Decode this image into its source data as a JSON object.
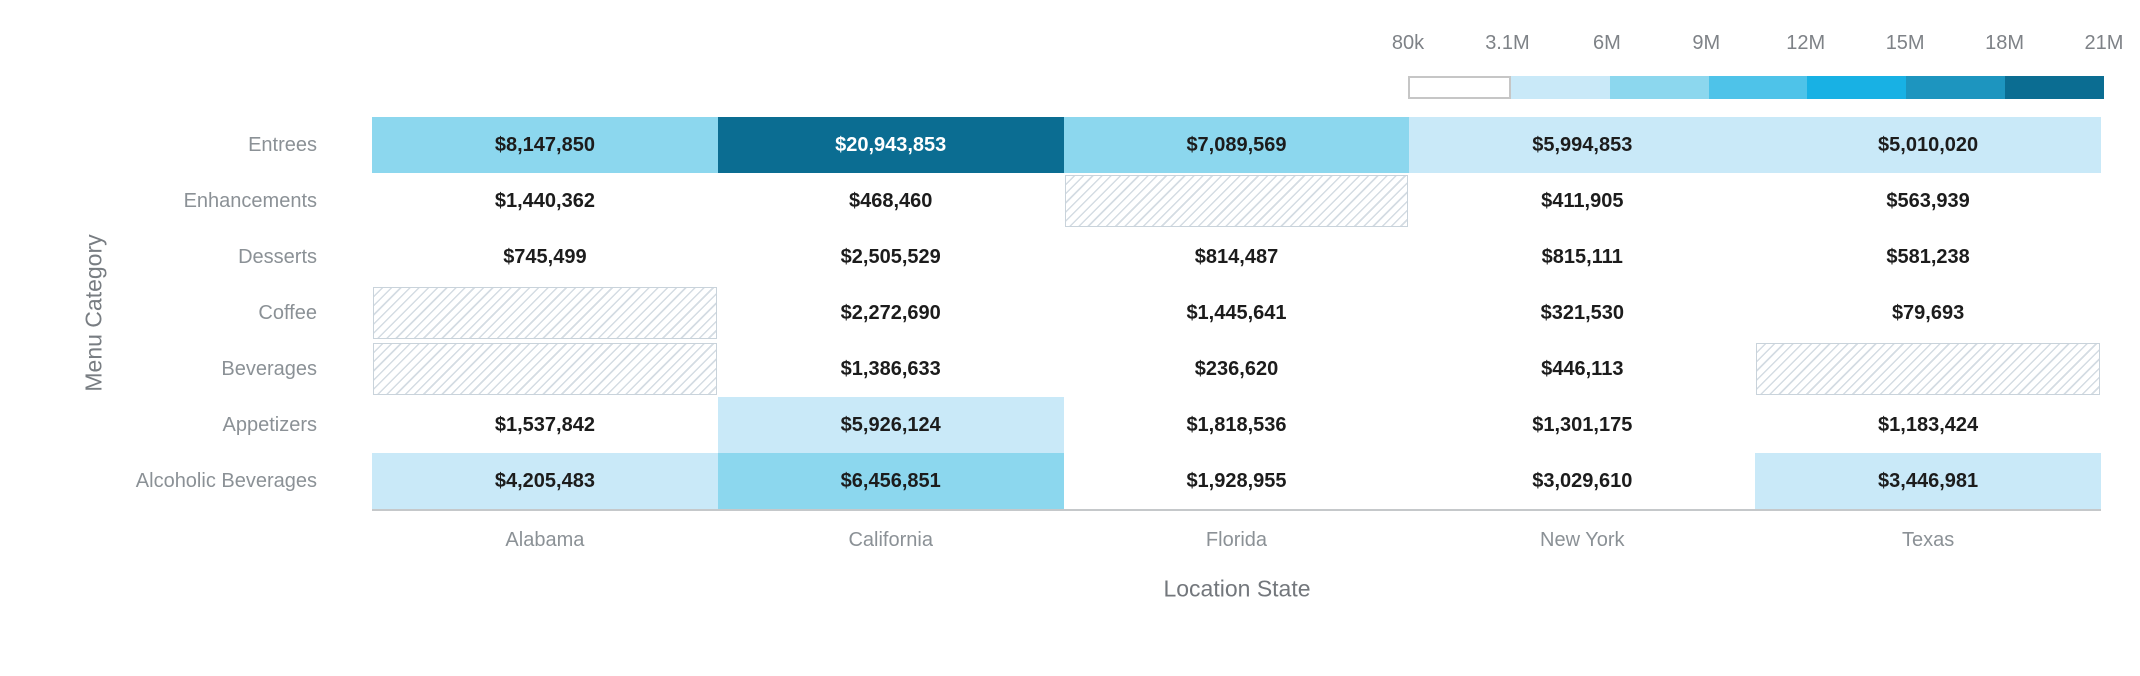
{
  "chart_data": {
    "type": "heatmap",
    "title": "",
    "xlabel": "Location State",
    "ylabel": "Menu Category",
    "columns": [
      "Alabama",
      "California",
      "Florida",
      "New York",
      "Texas"
    ],
    "rows": [
      "Entrees",
      "Enhancements",
      "Desserts",
      "Coffee",
      "Beverages",
      "Appetizers",
      "Alcoholic Beverages"
    ],
    "values": [
      [
        "$8,147,850",
        "$20,943,853",
        "$7,089,569",
        "$5,994,853",
        "$5,010,020"
      ],
      [
        "$1,440,362",
        "$468,460",
        null,
        "$411,905",
        "$563,939"
      ],
      [
        "$745,499",
        "$2,505,529",
        "$814,487",
        "$815,111",
        "$581,238"
      ],
      [
        null,
        "$2,272,690",
        "$1,445,641",
        "$321,530",
        "$79,693"
      ],
      [
        null,
        "$1,386,633",
        "$236,620",
        "$446,113",
        null
      ],
      [
        "$1,537,842",
        "$5,926,124",
        "$1,818,536",
        "$1,301,175",
        "$1,183,424"
      ],
      [
        "$4,205,483",
        "$6,456,851",
        "$1,928,955",
        "$3,029,610",
        "$3,446,981"
      ]
    ],
    "legend": {
      "ticks": [
        "80k",
        "3.1M",
        "6M",
        "9M",
        "12M",
        "15M",
        "18M",
        "21M"
      ],
      "thresholds_millions": [
        3.1,
        6,
        9,
        12,
        15,
        18,
        21
      ],
      "colors": [
        "#ffffff",
        "#c9e9f8",
        "#8cd7ee",
        "#4ec3e9",
        "#18b1e4",
        "#1d95bf",
        "#0b6d92"
      ],
      "missing_value_style": "hatched"
    },
    "grid": false,
    "legend_position": "top-right",
    "value_text_color": "#1c1c1c",
    "label_color": "#8b9196"
  }
}
